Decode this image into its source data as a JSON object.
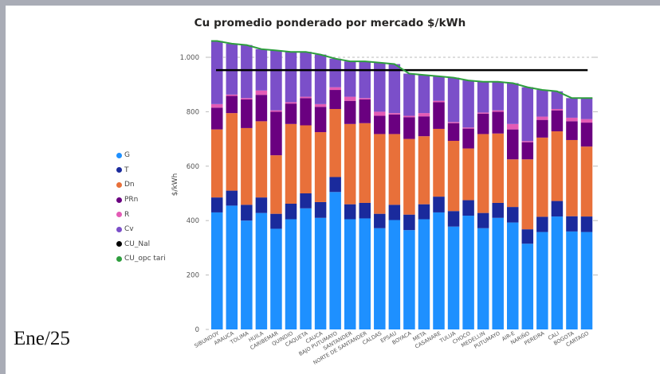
{
  "slide": {
    "footer_label": "Ene/25"
  },
  "chart_data": {
    "type": "bar",
    "stacked": true,
    "title": "Cu promedio ponderado por mercado $/kWh",
    "xlabel": "",
    "ylabel": "$/kWh",
    "ylim": [
      0,
      1080
    ],
    "yticks": [
      0,
      200,
      400,
      600,
      800,
      1000
    ],
    "ytick_labels": [
      "0",
      "200",
      "400",
      "600",
      "800",
      "1.000"
    ],
    "grid": "dashed reference at 1.000",
    "legend_position": "left",
    "categories": [
      "SIBUNDOY",
      "ARAUCA",
      "TOLIMA",
      "HUILA",
      "CARIBEMAR",
      "QUINDIO",
      "CAQUETA",
      "CAUCA",
      "BAJO PUTUMAYO",
      "SANTANDER",
      "NORTE DE SANTANDER",
      "CALDAS",
      "EPSAU",
      "BOYACA",
      "META",
      "CASANARE",
      "TULUA",
      "CHOCO",
      "MEDELLIN",
      "PUTUMAYO",
      "AIR-E",
      "NARIÑO",
      "PEREIRA",
      "CALI",
      "BOGOTA",
      "CARTAGO"
    ],
    "series": [
      {
        "name": "G",
        "color": "#1e90ff",
        "values": [
          430,
          455,
          400,
          428,
          370,
          405,
          445,
          410,
          505,
          405,
          408,
          372,
          402,
          365,
          405,
          430,
          378,
          418,
          372,
          410,
          393,
          315,
          358,
          415,
          360,
          358
        ]
      },
      {
        "name": "T",
        "color": "#1a2a9c",
        "values": [
          55,
          55,
          58,
          57,
          55,
          57,
          55,
          58,
          55,
          55,
          57,
          53,
          56,
          57,
          55,
          58,
          57,
          57,
          56,
          55,
          57,
          53,
          56,
          57,
          56,
          57
        ]
      },
      {
        "name": "Dn",
        "color": "#e8703a",
        "values": [
          250,
          285,
          282,
          280,
          215,
          293,
          250,
          257,
          250,
          295,
          293,
          293,
          260,
          278,
          250,
          249,
          258,
          190,
          290,
          255,
          175,
          257,
          291,
          256,
          280,
          257
        ]
      },
      {
        "name": "PRn",
        "color": "#6a0080",
        "values": [
          80,
          63,
          105,
          97,
          160,
          75,
          100,
          93,
          70,
          85,
          87,
          67,
          72,
          80,
          73,
          98,
          65,
          73,
          75,
          80,
          110,
          63,
          65,
          77,
          69,
          88
        ]
      },
      {
        "name": "R",
        "color": "#e35bb5",
        "values": [
          13,
          5,
          5,
          16,
          5,
          5,
          5,
          10,
          10,
          15,
          5,
          15,
          5,
          5,
          12,
          5,
          4,
          4,
          4,
          5,
          20,
          4,
          12,
          5,
          13,
          13
        ]
      },
      {
        "name": "Cv",
        "color": "#7b4fc9",
        "values": [
          232,
          187,
          195,
          152,
          220,
          185,
          165,
          182,
          105,
          130,
          135,
          180,
          180,
          155,
          140,
          90,
          163,
          173,
          113,
          105,
          150,
          198,
          98,
          65,
          72,
          77
        ]
      }
    ],
    "lines": [
      {
        "name": "CU_Nal",
        "color": "#000000",
        "value": 953,
        "from": "SIBUNDOY",
        "to": "CARTAGO"
      },
      {
        "name": "CU_opc_tari",
        "label": "CU_opc tari",
        "color": "#2e9e3e",
        "values": [
          1060,
          1050,
          1045,
          1030,
          1025,
          1020,
          1020,
          1010,
          995,
          985,
          985,
          980,
          975,
          940,
          935,
          930,
          925,
          915,
          910,
          910,
          905,
          890,
          880,
          875,
          850,
          850
        ]
      }
    ],
    "legend": [
      {
        "label": "G",
        "color": "#1e90ff"
      },
      {
        "label": "T",
        "color": "#1a2a9c"
      },
      {
        "label": "Dn",
        "color": "#e8703a"
      },
      {
        "label": "PRn",
        "color": "#6a0080"
      },
      {
        "label": "R",
        "color": "#e35bb5"
      },
      {
        "label": "Cv",
        "color": "#7b4fc9"
      },
      {
        "label": "CU_Nal",
        "color": "#000000"
      },
      {
        "label": "CU_opc tari",
        "color": "#2e9e3e"
      }
    ]
  }
}
